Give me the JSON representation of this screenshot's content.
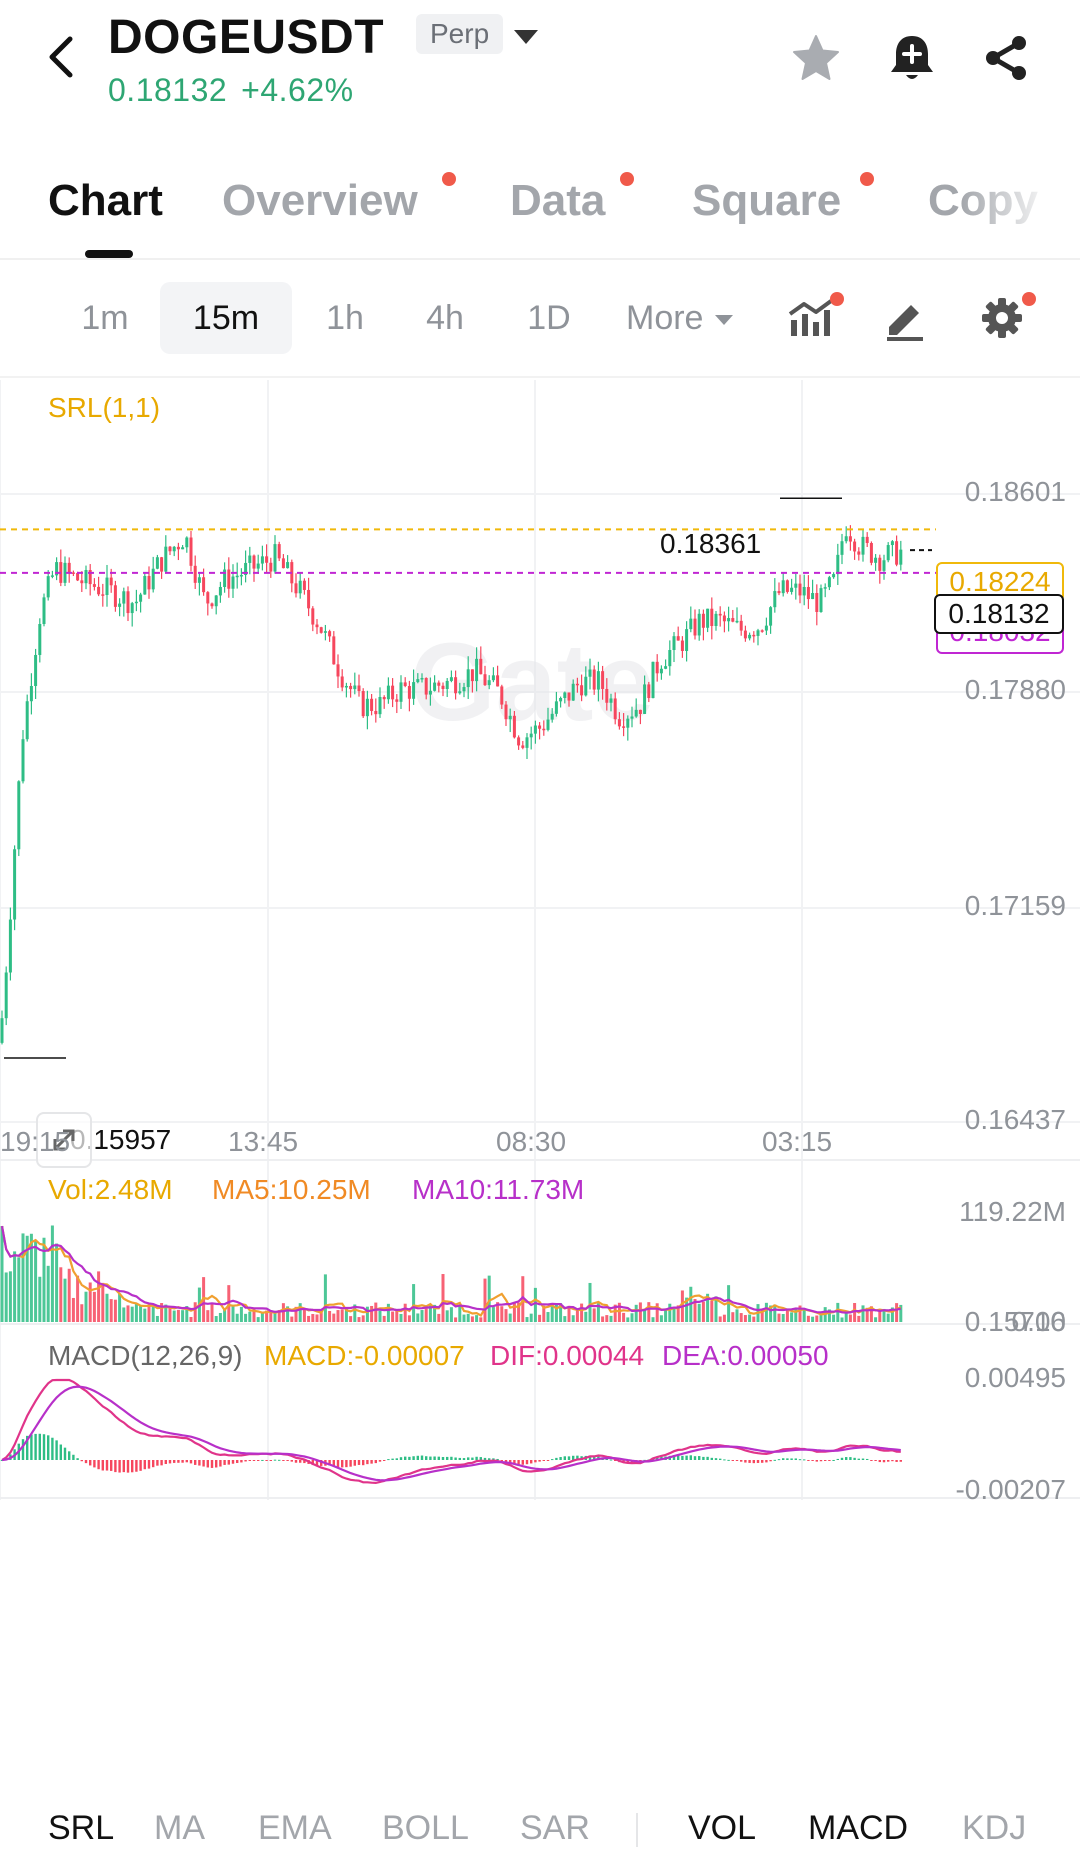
{
  "header": {
    "symbol": "DOGEUSDT",
    "contract_type": "Perp",
    "last_price": "0.18132",
    "change_pct": "+4.62%",
    "price_color": "#2ea673"
  },
  "tabs": [
    {
      "label": "Chart",
      "active": true,
      "dot": false
    },
    {
      "label": "Overview",
      "active": false,
      "dot": true
    },
    {
      "label": "Data",
      "active": false,
      "dot": true
    },
    {
      "label": "Square",
      "active": false,
      "dot": true
    },
    {
      "label": "Copy",
      "active": false,
      "dot": false
    }
  ],
  "intervals": [
    "1m",
    "15m",
    "1h",
    "4h",
    "1D"
  ],
  "active_interval": "15m",
  "more_label": "More",
  "chart": {
    "indicator_label": "SRL(1,1)",
    "price_axis": [
      "0.18601",
      "0.17880",
      "0.17159",
      "0.16437",
      "0.15716"
    ],
    "time_axis": [
      "19:15",
      "13:45",
      "08:30",
      "03:15"
    ],
    "high_marker": "0.18361",
    "low_marker": "0.15957",
    "srl_upper": "0.18224",
    "srl_lower": "0.18032",
    "current_price": "0.18132",
    "watermark": "Gate",
    "colors": {
      "up": "#2ebd85",
      "down": "#f6465d",
      "srl_upper": "#f0b90b",
      "srl_lower": "#c026d3"
    },
    "price_range": [
      0.1562,
      0.1875
    ]
  },
  "volume": {
    "vol": "Vol:2.48M",
    "ma5": "MA5:10.25M",
    "ma10": "MA10:11.73M",
    "axis_top": "119.22M",
    "axis_bottom": "0.00"
  },
  "macd": {
    "label": "MACD(12,26,9)",
    "macd": "MACD:-0.00007",
    "dif": "DIF:0.00044",
    "dea": "DEA:0.00050",
    "axis_top": "0.00495",
    "axis_bottom": "-0.00207"
  },
  "bottom_indicators": {
    "main": [
      "SRL",
      "MA",
      "EMA",
      "BOLL",
      "SAR"
    ],
    "sub": [
      "VOL",
      "MACD",
      "KDJ"
    ],
    "selected": [
      "SRL",
      "VOL",
      "MACD"
    ]
  }
}
